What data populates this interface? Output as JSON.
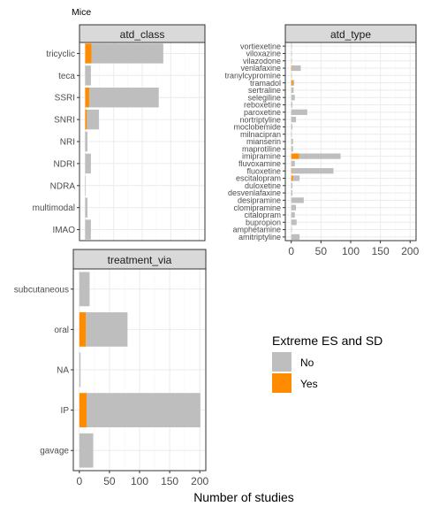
{
  "title": "Mice",
  "xlabel": "Number of studies",
  "legend": {
    "title": "Extreme ES and SD",
    "entries": [
      {
        "label": "No",
        "color": "#bebebe"
      },
      {
        "label": "Yes",
        "color": "#ff8c00"
      }
    ]
  },
  "colors": {
    "no": "#bebebe",
    "yes": "#ff8c00",
    "strip": "#d9d9d9",
    "grid_major": "#ebebeb",
    "grid_minor": "#f5f5f5"
  },
  "chart_data": [
    {
      "type": "bar",
      "orientation": "horizontal",
      "stacked": true,
      "title": "atd_class",
      "categories": [
        "tricyclic",
        "teca",
        "SSRI",
        "SNRI",
        "NRI",
        "NDRI",
        "NDRA",
        "multimodal",
        "IMAO"
      ],
      "series": [
        {
          "name": "No",
          "values": [
            126,
            10,
            122,
            21,
            4,
            10,
            1,
            4,
            10
          ]
        },
        {
          "name": "Yes",
          "values": [
            11,
            0,
            7,
            3,
            0,
            0,
            0,
            0,
            0
          ]
        }
      ],
      "xlim": [
        0,
        200
      ],
      "xticks": [
        "0",
        "50",
        "100",
        "150",
        "200"
      ]
    },
    {
      "type": "bar",
      "orientation": "horizontal",
      "stacked": true,
      "title": "atd_type",
      "categories": [
        "vortiexetine",
        "viloxazine",
        "vilazodone",
        "venlafaxine",
        "tranylcypromine",
        "tramadol",
        "sertraline",
        "selegiline",
        "reboxetine",
        "paroxetine",
        "nortriptyline",
        "moclobemide",
        "milnacipran",
        "mianserin",
        "maprotiline",
        "imipramine",
        "fluvoxamine",
        "fluoxetine",
        "escitalopram",
        "duloxetine",
        "desvenlafaxine",
        "desipramine",
        "clomipramine",
        "citalopram",
        "bupropion",
        "amphetamine",
        "amitriptyline"
      ],
      "series": [
        {
          "name": "No",
          "values": [
            1,
            1,
            1,
            15,
            1,
            2,
            4,
            6,
            2,
            27,
            8,
            2,
            1,
            3,
            3,
            70,
            6,
            70,
            11,
            2,
            2,
            21,
            8,
            6,
            9,
            1,
            14
          ]
        },
        {
          "name": "Yes",
          "values": [
            0,
            0,
            0,
            1,
            0,
            3,
            0,
            0,
            0,
            0,
            0,
            0,
            0,
            0,
            0,
            13,
            0,
            1,
            3,
            0,
            0,
            0,
            0,
            0,
            0,
            0,
            0
          ]
        }
      ],
      "xlim": [
        0,
        200
      ],
      "xticks": [
        "0",
        "50",
        "100",
        "150",
        "200"
      ]
    },
    {
      "type": "bar",
      "orientation": "horizontal",
      "stacked": true,
      "title": "treatment_via",
      "categories": [
        "subcutaneous",
        "oral",
        "NA",
        "IP",
        "gavage"
      ],
      "series": [
        {
          "name": "No",
          "values": [
            17,
            69,
            2,
            189,
            23
          ]
        },
        {
          "name": "Yes",
          "values": [
            0,
            11,
            0,
            12,
            0
          ]
        }
      ],
      "xlim": [
        0,
        200
      ],
      "xticks": [
        "0",
        "50",
        "100",
        "150",
        "200"
      ]
    }
  ]
}
